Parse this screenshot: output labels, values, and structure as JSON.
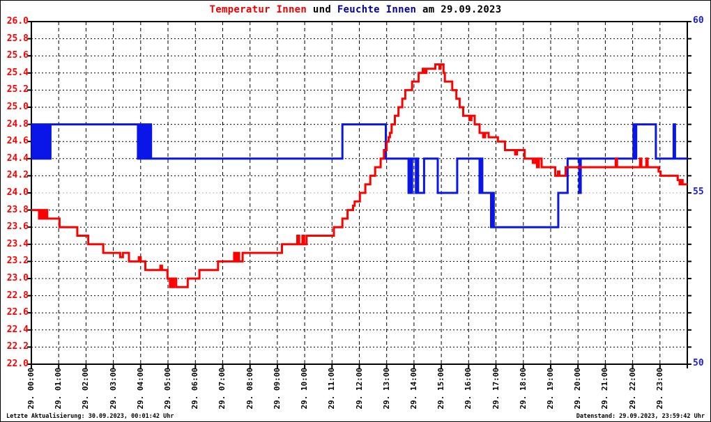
{
  "title": {
    "temperature_label": "Temperatur Innen",
    "connector": " und ",
    "humidity_label": "Feuchte Innen",
    "date_suffix": " am 29.09.2023"
  },
  "footer": {
    "left": "Letzte Aktualisierung: 30.09.2023, 00:01:42 Uhr",
    "right": "Datenstand: 29.09.2023, 23:59:42 Uhr"
  },
  "colors": {
    "temperature_line": "#ff0000",
    "humidity_line": "#0a16e8",
    "title_temperature": "#ee0000",
    "title_humidity": "#000099",
    "title_default": "#000000",
    "left_axis_labels": "#ff0000",
    "right_axis_labels": "#1a1aff",
    "axis": "#000000",
    "grid_vertical": "#000000",
    "grid_horizontal": "#000000",
    "grid_humidity_55": "#b3b3b3"
  },
  "chart_data": {
    "type": "line",
    "title": "Temperatur Innen und Feuchte Innen am 29.09.2023",
    "grid": "on",
    "legend": "none",
    "x": {
      "unit": "time of day on 29.09.2023",
      "range_hours": [
        0,
        24
      ],
      "tick_labels": [
        "29. 00:00",
        "29. 01:00",
        "29. 02:00",
        "29. 03:00",
        "29. 04:00",
        "29. 05:00",
        "29. 06:00",
        "29. 07:00",
        "29. 08:00",
        "29. 09:00",
        "29. 10:00",
        "29. 11:00",
        "29. 12:00",
        "29. 13:00",
        "29. 14:00",
        "29. 15:00",
        "29. 16:00",
        "29. 17:00",
        "29. 18:00",
        "29. 19:00",
        "29. 20:00",
        "29. 21:00",
        "29. 22:00",
        "29. 23:00"
      ]
    },
    "y_left": {
      "name": "Temperatur Innen (°C)",
      "range": [
        22.0,
        26.0
      ],
      "tick_step": 0.2,
      "tick_labels": [
        "26.0",
        "25.8",
        "25.6",
        "25.4",
        "25.2",
        "25.0",
        "24.8",
        "24.6",
        "24.4",
        "24.2",
        "24.0",
        "23.8",
        "23.6",
        "23.4",
        "23.2",
        "23.0",
        "22.8",
        "22.6",
        "22.4",
        "22.2",
        "22.0"
      ]
    },
    "y_right": {
      "name": "Feuchte Innen (%)",
      "range": [
        50,
        60
      ],
      "tick_values": [
        60,
        55,
        50
      ],
      "tick_labels": [
        "60",
        "55",
        "50"
      ]
    },
    "series": [
      {
        "name": "Temperatur Innen",
        "axis": "left",
        "color": "#ff0000",
        "interpolation": "step-after",
        "points": [
          [
            0.0,
            23.8
          ],
          [
            0.28,
            23.7
          ],
          [
            0.32,
            23.8
          ],
          [
            0.38,
            23.7
          ],
          [
            0.42,
            23.8
          ],
          [
            0.47,
            23.7
          ],
          [
            0.52,
            23.8
          ],
          [
            0.58,
            23.7
          ],
          [
            1.03,
            23.6
          ],
          [
            1.68,
            23.5
          ],
          [
            2.08,
            23.4
          ],
          [
            2.63,
            23.3
          ],
          [
            3.25,
            23.25
          ],
          [
            3.35,
            23.3
          ],
          [
            3.57,
            23.2
          ],
          [
            3.93,
            23.25
          ],
          [
            4.0,
            23.2
          ],
          [
            4.17,
            23.1
          ],
          [
            4.72,
            23.15
          ],
          [
            4.78,
            23.1
          ],
          [
            4.98,
            23.0
          ],
          [
            5.07,
            22.9
          ],
          [
            5.12,
            23.0
          ],
          [
            5.17,
            22.9
          ],
          [
            5.22,
            23.0
          ],
          [
            5.3,
            22.9
          ],
          [
            5.72,
            23.0
          ],
          [
            6.15,
            23.1
          ],
          [
            6.83,
            23.2
          ],
          [
            7.42,
            23.3
          ],
          [
            7.47,
            23.2
          ],
          [
            7.53,
            23.3
          ],
          [
            7.6,
            23.2
          ],
          [
            7.73,
            23.3
          ],
          [
            9.17,
            23.4
          ],
          [
            9.73,
            23.5
          ],
          [
            9.8,
            23.4
          ],
          [
            9.92,
            23.5
          ],
          [
            9.98,
            23.4
          ],
          [
            10.07,
            23.5
          ],
          [
            11.07,
            23.6
          ],
          [
            11.38,
            23.7
          ],
          [
            11.57,
            23.8
          ],
          [
            11.77,
            23.85
          ],
          [
            11.83,
            23.9
          ],
          [
            12.02,
            24.0
          ],
          [
            12.22,
            24.1
          ],
          [
            12.4,
            24.2
          ],
          [
            12.58,
            24.3
          ],
          [
            12.78,
            24.4
          ],
          [
            12.9,
            24.5
          ],
          [
            13.0,
            24.6
          ],
          [
            13.07,
            24.65
          ],
          [
            13.12,
            24.7
          ],
          [
            13.18,
            24.8
          ],
          [
            13.3,
            24.9
          ],
          [
            13.43,
            25.0
          ],
          [
            13.57,
            25.1
          ],
          [
            13.68,
            25.2
          ],
          [
            13.93,
            25.3
          ],
          [
            14.17,
            25.4
          ],
          [
            14.32,
            25.45
          ],
          [
            14.38,
            25.4
          ],
          [
            14.45,
            25.45
          ],
          [
            14.78,
            25.5
          ],
          [
            14.93,
            25.45
          ],
          [
            14.97,
            25.5
          ],
          [
            15.08,
            25.4
          ],
          [
            15.13,
            25.3
          ],
          [
            15.4,
            25.2
          ],
          [
            15.55,
            25.1
          ],
          [
            15.67,
            25.0
          ],
          [
            15.8,
            24.9
          ],
          [
            16.03,
            24.85
          ],
          [
            16.1,
            24.9
          ],
          [
            16.22,
            24.8
          ],
          [
            16.4,
            24.7
          ],
          [
            16.53,
            24.65
          ],
          [
            16.6,
            24.7
          ],
          [
            16.73,
            24.65
          ],
          [
            17.07,
            24.6
          ],
          [
            17.33,
            24.5
          ],
          [
            17.7,
            24.45
          ],
          [
            17.77,
            24.5
          ],
          [
            18.05,
            24.4
          ],
          [
            18.35,
            24.35
          ],
          [
            18.43,
            24.4
          ],
          [
            18.5,
            24.3
          ],
          [
            18.57,
            24.4
          ],
          [
            18.67,
            24.3
          ],
          [
            19.17,
            24.2
          ],
          [
            19.27,
            24.25
          ],
          [
            19.32,
            24.2
          ],
          [
            19.55,
            24.3
          ],
          [
            21.38,
            24.4
          ],
          [
            21.43,
            24.3
          ],
          [
            22.27,
            24.4
          ],
          [
            22.32,
            24.3
          ],
          [
            22.5,
            24.4
          ],
          [
            22.55,
            24.3
          ],
          [
            22.95,
            24.25
          ],
          [
            23.02,
            24.2
          ],
          [
            23.65,
            24.15
          ],
          [
            23.72,
            24.1
          ],
          [
            23.78,
            24.15
          ],
          [
            23.83,
            24.1
          ]
        ]
      },
      {
        "name": "Feuchte Innen",
        "axis": "right",
        "color": "#0a16e8",
        "interpolation": "step-after",
        "points": [
          [
            0.0,
            56
          ],
          [
            0.03,
            57
          ],
          [
            0.07,
            56
          ],
          [
            0.1,
            57
          ],
          [
            0.14,
            56
          ],
          [
            0.18,
            57
          ],
          [
            0.22,
            56
          ],
          [
            0.26,
            57
          ],
          [
            0.3,
            56
          ],
          [
            0.34,
            57
          ],
          [
            0.38,
            56
          ],
          [
            0.42,
            57
          ],
          [
            0.46,
            56
          ],
          [
            0.5,
            57
          ],
          [
            0.55,
            56
          ],
          [
            0.6,
            57
          ],
          [
            0.65,
            56
          ],
          [
            0.7,
            57
          ],
          [
            3.9,
            56
          ],
          [
            3.94,
            57
          ],
          [
            3.98,
            56
          ],
          [
            4.02,
            57
          ],
          [
            4.06,
            56
          ],
          [
            4.1,
            57
          ],
          [
            4.14,
            56
          ],
          [
            4.18,
            57
          ],
          [
            4.22,
            56
          ],
          [
            4.26,
            57
          ],
          [
            4.3,
            56
          ],
          [
            4.34,
            57
          ],
          [
            4.38,
            56
          ],
          [
            11.38,
            57
          ],
          [
            12.97,
            56
          ],
          [
            13.8,
            55
          ],
          [
            13.85,
            56
          ],
          [
            13.88,
            55
          ],
          [
            13.93,
            56
          ],
          [
            14.07,
            55
          ],
          [
            14.12,
            56
          ],
          [
            14.15,
            55
          ],
          [
            14.37,
            56
          ],
          [
            14.87,
            55
          ],
          [
            15.58,
            56
          ],
          [
            16.4,
            55
          ],
          [
            16.45,
            56
          ],
          [
            16.5,
            55
          ],
          [
            16.82,
            54
          ],
          [
            16.87,
            55
          ],
          [
            16.92,
            54
          ],
          [
            19.28,
            55
          ],
          [
            19.62,
            56
          ],
          [
            20.05,
            55
          ],
          [
            20.1,
            56
          ],
          [
            22.03,
            57
          ],
          [
            22.08,
            56
          ],
          [
            22.13,
            57
          ],
          [
            22.85,
            56
          ],
          [
            23.5,
            57
          ],
          [
            23.55,
            56
          ]
        ]
      }
    ]
  }
}
